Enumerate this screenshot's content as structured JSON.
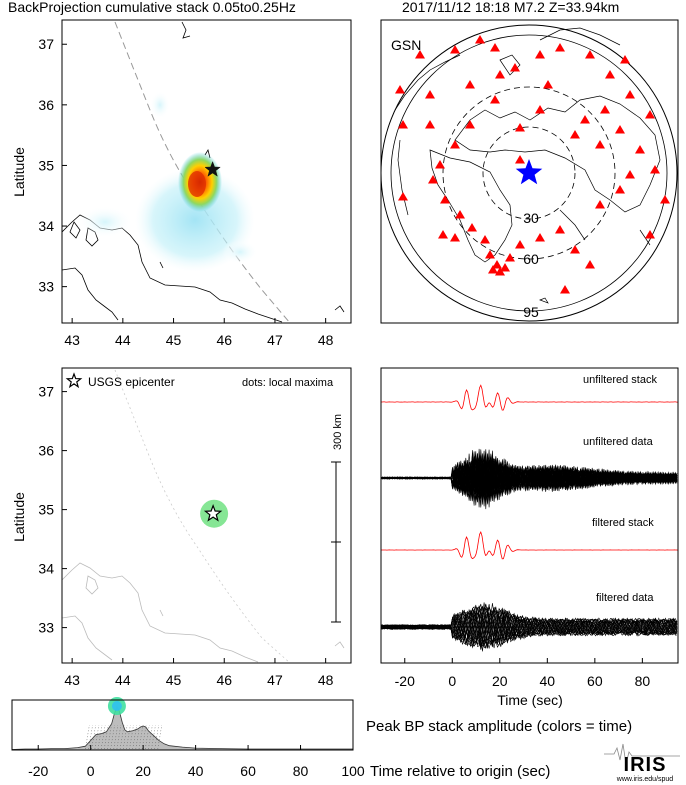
{
  "header": {
    "left": "BackProjection cumulative stack 0.05to0.25Hz",
    "right": "2017/11/12 18:18   M7.2  Z=33.94km"
  },
  "chart_data": [
    {
      "type": "heatmap",
      "title": "",
      "ylabel": "Latitude",
      "x_ticks": [
        "43",
        "44",
        "45",
        "46",
        "47",
        "48"
      ],
      "y_ticks": [
        "33",
        "34",
        "35",
        "36",
        "37"
      ],
      "xlim": [
        42.8,
        48.5
      ],
      "ylim": [
        32.4,
        37.4
      ],
      "epicenter": {
        "lon": 45.77,
        "lat": 34.93
      },
      "peak": {
        "lon": 45.75,
        "lat": 34.85
      }
    },
    {
      "type": "scatter",
      "network_label": "GSN",
      "ring_labels": [
        "30",
        "60",
        "95"
      ],
      "ring_distances_deg": [
        30,
        60,
        95
      ],
      "station_count": 58,
      "station_color": "#ff0000",
      "epicenter_color": "#0000ff"
    },
    {
      "type": "scatter",
      "ylabel": "Latitude",
      "x_ticks": [
        "43",
        "44",
        "45",
        "46",
        "47",
        "48"
      ],
      "y_ticks": [
        "33",
        "34",
        "35",
        "36",
        "37"
      ],
      "xlim": [
        42.8,
        48.5
      ],
      "ylim": [
        32.4,
        37.4
      ],
      "legend_epicenter": "USGS epicenter",
      "legend_dots": "dots: local maxima",
      "scale_bar_label": "300 km",
      "local_maxima": [
        {
          "lon": 45.8,
          "lat": 34.93
        }
      ],
      "epicenter": {
        "lon": 45.78,
        "lat": 34.93
      }
    },
    {
      "type": "line",
      "xlabel": "Time (sec)",
      "x_ticks": [
        "-20",
        "0",
        "20",
        "40",
        "60",
        "80"
      ],
      "xlim": [
        -30,
        95
      ],
      "series": [
        {
          "name": "unfiltered stack",
          "color": "#ff0000"
        },
        {
          "name": "unfiltered data",
          "color": "#000000"
        },
        {
          "name": "filtered stack",
          "color": "#ff0000"
        },
        {
          "name": "filtered data",
          "color": "#000000"
        }
      ]
    },
    {
      "type": "area",
      "title": "Peak BP stack amplitude (colors = time)",
      "xlabel": "Time relative to origin (sec)",
      "x_ticks": [
        "-20",
        "0",
        "20",
        "40",
        "60",
        "80",
        "100"
      ],
      "xlim": [
        -30,
        100
      ],
      "x": [
        -30,
        -25,
        -20,
        -15,
        -10,
        -5,
        -2,
        0,
        2,
        4,
        6,
        8,
        9,
        10,
        11,
        12,
        13,
        14,
        16,
        18,
        19,
        20,
        21,
        22,
        24,
        26,
        28,
        30,
        35,
        40,
        50,
        60,
        80,
        100
      ],
      "y": [
        0.01,
        0.02,
        0.02,
        0.03,
        0.03,
        0.05,
        0.08,
        0.2,
        0.32,
        0.34,
        0.38,
        0.55,
        0.75,
        0.9,
        0.8,
        0.58,
        0.42,
        0.38,
        0.4,
        0.44,
        0.48,
        0.5,
        0.48,
        0.4,
        0.3,
        0.2,
        0.13,
        0.09,
        0.06,
        0.04,
        0.03,
        0.02,
        0.02,
        0.02
      ],
      "peak_marker_time": 10
    }
  ],
  "logo": {
    "text": "IRIS",
    "url": "www.iris.edu/spud"
  }
}
